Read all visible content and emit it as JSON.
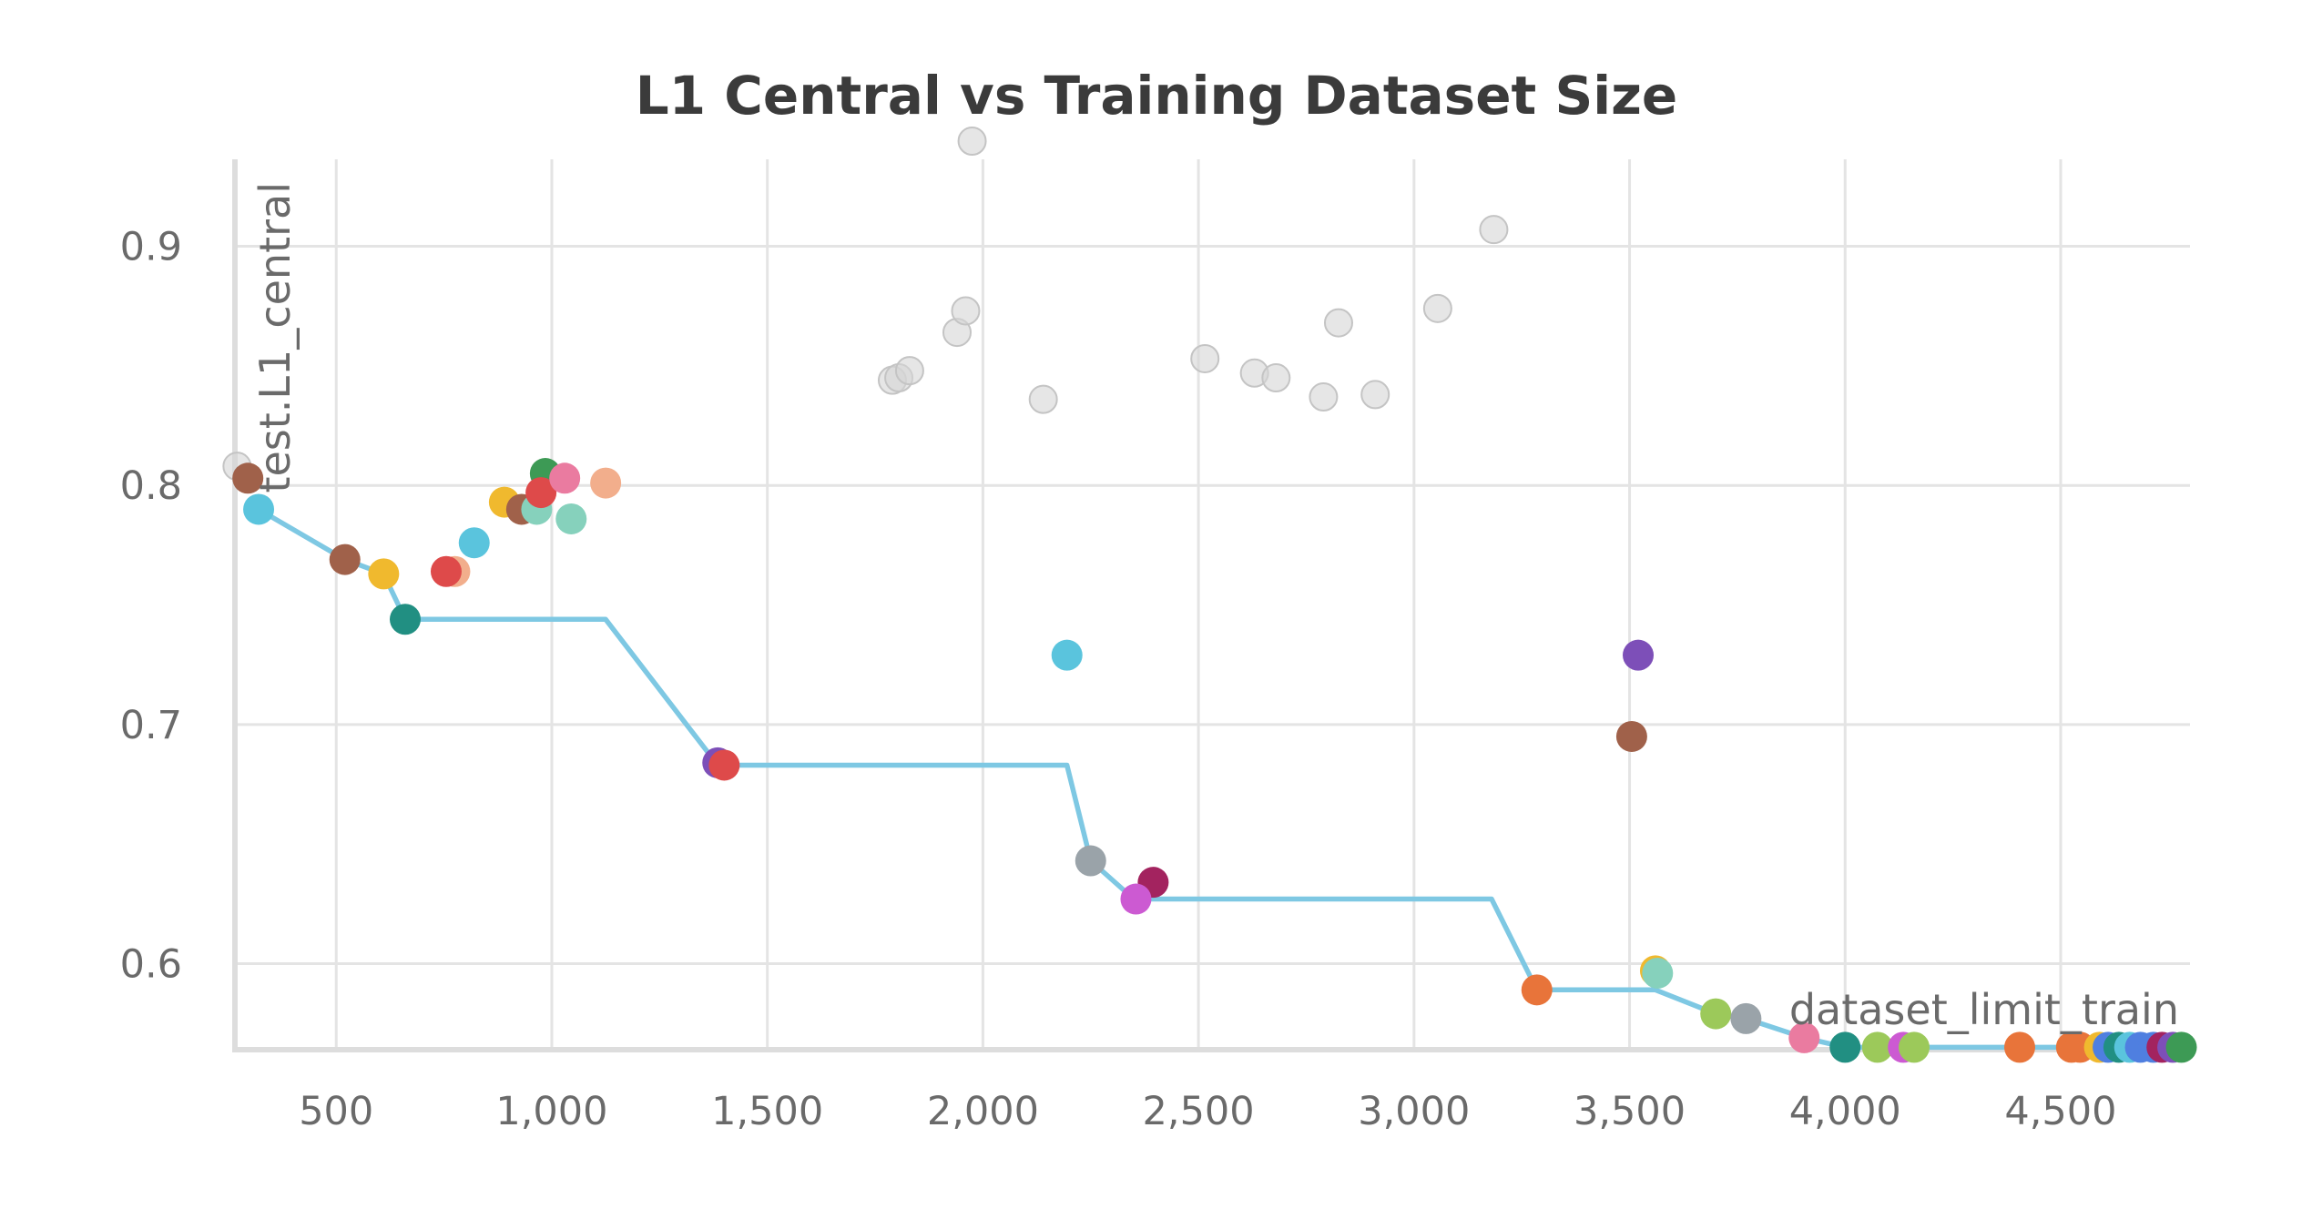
{
  "chart_data": {
    "type": "scatter",
    "title": "L1 Central vs Training Dataset Size",
    "xlabel": "dataset_limit_train",
    "ylabel": "test.L1_central",
    "xlim": [
      265,
      4800
    ],
    "ylim": [
      0.564,
      0.944
    ],
    "xticks": [
      500,
      1000,
      1500,
      2000,
      2500,
      3000,
      3500,
      4000,
      4500
    ],
    "xtick_labels": [
      "500",
      "1,000",
      "1,500",
      "2,000",
      "2,500",
      "3,000",
      "3,500",
      "4,000",
      "4,500"
    ],
    "yticks": [
      0.6,
      0.7,
      0.8,
      0.9
    ],
    "ytick_labels": [
      "0.6",
      "0.7",
      "0.8",
      "0.9"
    ],
    "grid": true,
    "colors": {
      "background_points": "#d6d6d6",
      "line": "#7ec8e3",
      "palette": {
        "blue": "#5ac4dd",
        "brown": "#a0614a",
        "yellow": "#f0b92e",
        "teal": "#218f82",
        "red": "#de4a4a",
        "peach": "#f2ae8c",
        "green": "#3d9a55",
        "pink": "#ea7ba0",
        "mint": "#86d1bc",
        "purple": "#7d4fb8",
        "gray": "#9aa3a9",
        "magenta": "#cc5ad2",
        "crimson": "#a3235f",
        "orange": "#e8743a",
        "lime": "#9cc95a",
        "royal": "#4f7fe0"
      }
    },
    "background_points": [
      {
        "x": 270,
        "y": 0.808
      },
      {
        "x": 1790,
        "y": 0.844
      },
      {
        "x": 1805,
        "y": 0.845
      },
      {
        "x": 1830,
        "y": 0.848
      },
      {
        "x": 1940,
        "y": 0.864
      },
      {
        "x": 1960,
        "y": 0.873
      },
      {
        "x": 1975,
        "y": 0.944
      },
      {
        "x": 2140,
        "y": 0.836
      },
      {
        "x": 2515,
        "y": 0.853
      },
      {
        "x": 2630,
        "y": 0.847
      },
      {
        "x": 2680,
        "y": 0.845
      },
      {
        "x": 2790,
        "y": 0.837
      },
      {
        "x": 2825,
        "y": 0.868
      },
      {
        "x": 2910,
        "y": 0.838
      },
      {
        "x": 3055,
        "y": 0.874
      },
      {
        "x": 3185,
        "y": 0.907
      }
    ],
    "best_so_far_line": [
      {
        "x": 320,
        "y": 0.79
      },
      {
        "x": 520,
        "y": 0.769
      },
      {
        "x": 610,
        "y": 0.763
      },
      {
        "x": 660,
        "y": 0.744
      },
      {
        "x": 1125,
        "y": 0.744
      },
      {
        "x": 1385,
        "y": 0.683
      },
      {
        "x": 2195,
        "y": 0.683
      },
      {
        "x": 2250,
        "y": 0.643
      },
      {
        "x": 2350,
        "y": 0.627
      },
      {
        "x": 3180,
        "y": 0.627
      },
      {
        "x": 3285,
        "y": 0.589
      },
      {
        "x": 3560,
        "y": 0.589
      },
      {
        "x": 3700,
        "y": 0.579
      },
      {
        "x": 3770,
        "y": 0.577
      },
      {
        "x": 3905,
        "y": 0.569
      },
      {
        "x": 4000,
        "y": 0.565
      },
      {
        "x": 4790,
        "y": 0.565
      }
    ],
    "points": [
      {
        "x": 295,
        "y": 0.803,
        "color": "brown"
      },
      {
        "x": 320,
        "y": 0.79,
        "color": "blue"
      },
      {
        "x": 520,
        "y": 0.769,
        "color": "brown"
      },
      {
        "x": 610,
        "y": 0.763,
        "color": "yellow"
      },
      {
        "x": 660,
        "y": 0.744,
        "color": "teal"
      },
      {
        "x": 775,
        "y": 0.764,
        "color": "peach"
      },
      {
        "x": 755,
        "y": 0.764,
        "color": "red"
      },
      {
        "x": 820,
        "y": 0.776,
        "color": "blue"
      },
      {
        "x": 890,
        "y": 0.793,
        "color": "yellow"
      },
      {
        "x": 930,
        "y": 0.79,
        "color": "brown"
      },
      {
        "x": 965,
        "y": 0.79,
        "color": "mint"
      },
      {
        "x": 985,
        "y": 0.805,
        "color": "green"
      },
      {
        "x": 975,
        "y": 0.797,
        "color": "red"
      },
      {
        "x": 1030,
        "y": 0.803,
        "color": "pink"
      },
      {
        "x": 1045,
        "y": 0.786,
        "color": "mint"
      },
      {
        "x": 1125,
        "y": 0.801,
        "color": "peach"
      },
      {
        "x": 1385,
        "y": 0.684,
        "color": "purple"
      },
      {
        "x": 1400,
        "y": 0.683,
        "color": "red"
      },
      {
        "x": 2195,
        "y": 0.729,
        "color": "blue"
      },
      {
        "x": 2250,
        "y": 0.643,
        "color": "gray"
      },
      {
        "x": 2395,
        "y": 0.634,
        "color": "crimson"
      },
      {
        "x": 2355,
        "y": 0.627,
        "color": "magenta"
      },
      {
        "x": 3505,
        "y": 0.695,
        "color": "brown"
      },
      {
        "x": 3520,
        "y": 0.729,
        "color": "purple"
      },
      {
        "x": 3285,
        "y": 0.589,
        "color": "orange"
      },
      {
        "x": 3560,
        "y": 0.597,
        "color": "yellow"
      },
      {
        "x": 3565,
        "y": 0.596,
        "color": "mint"
      },
      {
        "x": 3700,
        "y": 0.579,
        "color": "lime"
      },
      {
        "x": 3770,
        "y": 0.577,
        "color": "gray"
      },
      {
        "x": 3905,
        "y": 0.569,
        "color": "pink"
      },
      {
        "x": 4000,
        "y": 0.565,
        "color": "teal"
      },
      {
        "x": 4075,
        "y": 0.565,
        "color": "lime"
      },
      {
        "x": 4135,
        "y": 0.565,
        "color": "magenta"
      },
      {
        "x": 4160,
        "y": 0.565,
        "color": "lime"
      },
      {
        "x": 4405,
        "y": 0.565,
        "color": "orange"
      },
      {
        "x": 4525,
        "y": 0.565,
        "color": "orange"
      },
      {
        "x": 4545,
        "y": 0.565,
        "color": "orange"
      },
      {
        "x": 4590,
        "y": 0.565,
        "color": "yellow"
      },
      {
        "x": 4610,
        "y": 0.565,
        "color": "royal"
      },
      {
        "x": 4635,
        "y": 0.565,
        "color": "teal"
      },
      {
        "x": 4660,
        "y": 0.565,
        "color": "blue"
      },
      {
        "x": 4685,
        "y": 0.565,
        "color": "royal"
      },
      {
        "x": 4715,
        "y": 0.565,
        "color": "royal"
      },
      {
        "x": 4735,
        "y": 0.565,
        "color": "crimson"
      },
      {
        "x": 4760,
        "y": 0.565,
        "color": "purple"
      },
      {
        "x": 4780,
        "y": 0.565,
        "color": "green"
      }
    ]
  }
}
